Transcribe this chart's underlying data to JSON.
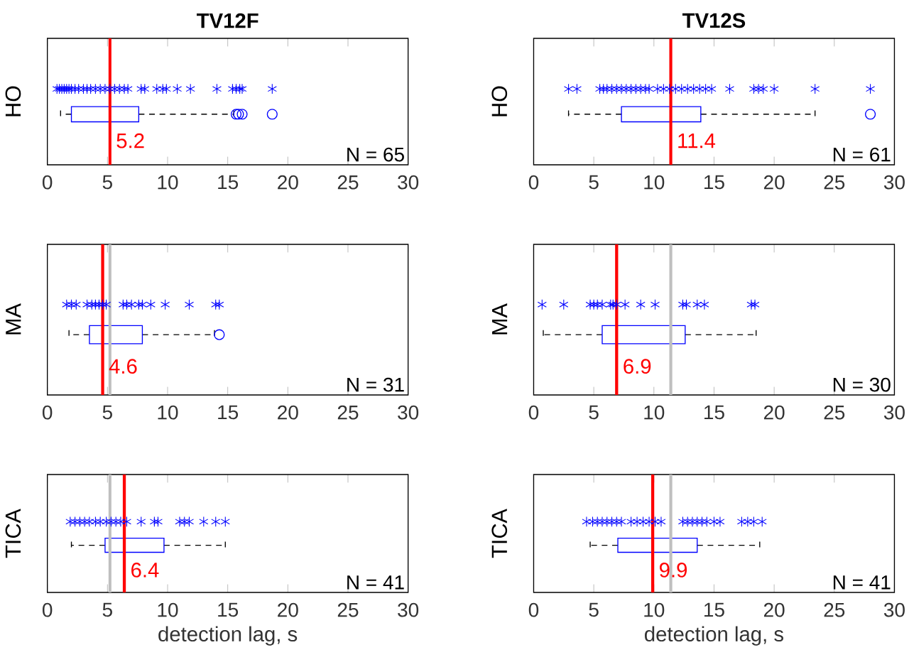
{
  "chart_data": [
    {
      "type": "box",
      "orientation": "horizontal",
      "title": "TV12F",
      "ylabel": "HO",
      "categories": [
        null,
        null
      ],
      "xlim": [
        0,
        30
      ],
      "xticks": [
        0,
        5,
        10,
        15,
        20,
        25,
        30
      ],
      "tick_labels": "x",
      "color": "#0000ff",
      "boxes": [
        null,
        {
          "low": 1.1,
          "q1": 2.0,
          "median": 5.2,
          "q3": 7.6,
          "high": 15.5,
          "outliers": [
            15.7,
            15.9,
            16.2,
            18.7
          ]
        }
      ],
      "series": [
        {
          "type": "scatter",
          "marker": "cross",
          "color": "#0000ff",
          "x": [
            null,
            null,
            null,
            null,
            null,
            null,
            null,
            null,
            null,
            null,
            null,
            null,
            null,
            null,
            null,
            null,
            null,
            null,
            null,
            null,
            null,
            null,
            null,
            null,
            null,
            null,
            null,
            null,
            null,
            null,
            null,
            null,
            null
          ],
          "values": [
            0.8,
            1.0,
            1.2,
            1.4,
            1.6,
            1.8,
            2.0,
            2.3,
            2.6,
            3.0,
            3.3,
            3.6,
            4.0,
            4.4,
            4.8,
            5.2,
            5.6,
            6.0,
            6.4,
            6.7,
            7.8,
            8.1,
            9.1,
            9.6,
            9.9,
            10.8,
            11.9,
            14.1,
            15.4,
            15.7,
            16.0,
            16.2,
            18.7
          ]
        }
      ],
      "ref_lines": [
        {
          "axis": "x",
          "value": 5.2,
          "label": "5.2",
          "color": "#ff0000"
        }
      ],
      "annotations": [
        "N = 65"
      ]
    },
    {
      "type": "box",
      "orientation": "horizontal",
      "title": "TV12S",
      "ylabel": "HO",
      "categories": [
        null,
        null
      ],
      "xlim": [
        0,
        30
      ],
      "xticks": [
        0,
        5,
        10,
        15,
        20,
        25,
        30
      ],
      "tick_labels": "x",
      "color": "#0000ff",
      "boxes": [
        null,
        {
          "low": 2.9,
          "q1": 7.3,
          "median": 11.4,
          "q3": 13.9,
          "high": 23.4,
          "outliers": [
            28.0
          ]
        }
      ],
      "series": [
        {
          "type": "scatter",
          "marker": "cross",
          "color": "#0000ff",
          "x": [
            null,
            null,
            null,
            null,
            null,
            null,
            null,
            null,
            null,
            null,
            null,
            null,
            null,
            null,
            null,
            null,
            null,
            null,
            null,
            null,
            null,
            null,
            null,
            null,
            null,
            null,
            null,
            null,
            null,
            null,
            null
          ],
          "values": [
            2.9,
            3.6,
            5.5,
            5.8,
            6.1,
            6.5,
            6.9,
            7.3,
            7.7,
            8.1,
            8.5,
            8.9,
            9.3,
            9.6,
            10.3,
            10.8,
            11.3,
            11.8,
            12.3,
            12.8,
            13.3,
            13.8,
            14.3,
            14.8,
            16.3,
            18.3,
            18.7,
            19.1,
            20.0,
            23.4,
            28.0
          ]
        }
      ],
      "ref_lines": [
        {
          "axis": "x",
          "value": 11.4,
          "label": "11.4",
          "color": "#ff0000"
        }
      ],
      "annotations": [
        "N = 61"
      ]
    },
    {
      "type": "box",
      "orientation": "horizontal",
      "ylabel": "MA",
      "categories": [
        null,
        null
      ],
      "xlim": [
        0,
        30
      ],
      "xticks": [
        0,
        5,
        10,
        15,
        20,
        25,
        30
      ],
      "tick_labels": "x",
      "color": "#0000ff",
      "boxes": [
        null,
        {
          "low": 1.8,
          "q1": 3.5,
          "median": 4.6,
          "q3": 7.9,
          "high": 13.9,
          "outliers": [
            14.3
          ]
        }
      ],
      "series": [
        {
          "type": "scatter",
          "marker": "cross",
          "color": "#0000ff",
          "x": [
            null,
            null,
            null,
            null,
            null,
            null,
            null,
            null,
            null,
            null,
            null,
            null,
            null,
            null,
            null,
            null,
            null,
            null,
            null
          ],
          "values": [
            1.6,
            2.0,
            2.4,
            3.3,
            3.7,
            4.0,
            4.3,
            4.6,
            4.9,
            6.3,
            6.6,
            7.0,
            7.6,
            7.9,
            8.6,
            9.8,
            11.8,
            14.0,
            14.3
          ]
        }
      ],
      "ref_lines": [
        {
          "axis": "x",
          "value": 5.2,
          "color": "#bfbfbf"
        },
        {
          "axis": "x",
          "value": 4.6,
          "label": "4.6",
          "color": "#ff0000"
        }
      ],
      "annotations": [
        "N = 31"
      ]
    },
    {
      "type": "box",
      "orientation": "horizontal",
      "ylabel": "MA",
      "categories": [
        null,
        null
      ],
      "xlim": [
        0,
        30
      ],
      "xticks": [
        0,
        5,
        10,
        15,
        20,
        25,
        30
      ],
      "tick_labels": "x",
      "color": "#0000ff",
      "boxes": [
        null,
        {
          "low": 0.8,
          "q1": 5.7,
          "median": 6.9,
          "q3": 12.6,
          "high": 18.5
        }
      ],
      "series": [
        {
          "type": "scatter",
          "marker": "cross",
          "color": "#0000ff",
          "x": [
            null,
            null,
            null,
            null,
            null,
            null,
            null,
            null,
            null,
            null,
            null,
            null,
            null,
            null,
            null,
            null,
            null,
            null
          ],
          "values": [
            0.7,
            2.5,
            4.7,
            5.0,
            5.3,
            5.7,
            6.4,
            6.6,
            6.9,
            7.6,
            8.9,
            10.1,
            12.4,
            12.7,
            13.6,
            14.2,
            18.1,
            18.4
          ]
        }
      ],
      "ref_lines": [
        {
          "axis": "x",
          "value": 11.4,
          "color": "#bfbfbf"
        },
        {
          "axis": "x",
          "value": 6.9,
          "label": "6.9",
          "color": "#ff0000"
        }
      ],
      "annotations": [
        "N = 30"
      ]
    },
    {
      "type": "box",
      "orientation": "horizontal",
      "ylabel": "TICA",
      "xlabel": "detection lag, s",
      "categories": [
        null,
        null
      ],
      "xlim": [
        0,
        30
      ],
      "xticks": [
        0,
        5,
        10,
        15,
        20,
        25,
        30
      ],
      "tick_labels": "x",
      "color": "#0000ff",
      "boxes": [
        null,
        {
          "low": 2.0,
          "q1": 4.8,
          "median": 6.4,
          "q3": 9.7,
          "high": 14.8
        }
      ],
      "series": [
        {
          "type": "scatter",
          "marker": "cross",
          "color": "#0000ff",
          "x": [
            null,
            null,
            null,
            null,
            null,
            null,
            null,
            null,
            null,
            null,
            null,
            null,
            null,
            null,
            null,
            null,
            null,
            null,
            null,
            null,
            null
          ],
          "values": [
            1.9,
            2.3,
            2.7,
            3.1,
            3.5,
            4.0,
            4.4,
            4.9,
            5.3,
            5.7,
            6.1,
            6.6,
            7.8,
            8.9,
            9.2,
            11.0,
            11.4,
            11.8,
            13.0,
            14.0,
            14.8
          ]
        }
      ],
      "ref_lines": [
        {
          "axis": "x",
          "value": 5.2,
          "color": "#bfbfbf"
        },
        {
          "axis": "x",
          "value": 6.4,
          "label": "6.4",
          "color": "#ff0000"
        }
      ],
      "annotations": [
        "N = 41"
      ]
    },
    {
      "type": "box",
      "orientation": "horizontal",
      "ylabel": "TICA",
      "xlabel": "detection lag, s",
      "categories": [
        null,
        null
      ],
      "xlim": [
        0,
        30
      ],
      "xticks": [
        0,
        5,
        10,
        15,
        20,
        25,
        30
      ],
      "tick_labels": "x",
      "color": "#0000ff",
      "boxes": [
        null,
        {
          "low": 4.7,
          "q1": 7.0,
          "median": 9.9,
          "q3": 13.6,
          "high": 18.8
        }
      ],
      "series": [
        {
          "type": "scatter",
          "marker": "cross",
          "color": "#0000ff",
          "x": [
            null,
            null,
            null,
            null,
            null,
            null,
            null,
            null,
            null,
            null,
            null,
            null,
            null,
            null,
            null,
            null,
            null,
            null,
            null,
            null,
            null,
            null,
            null,
            null,
            null,
            null
          ],
          "values": [
            4.4,
            4.9,
            5.3,
            5.7,
            6.1,
            6.5,
            6.9,
            7.3,
            8.1,
            8.6,
            9.1,
            9.6,
            10.1,
            10.6,
            12.4,
            12.8,
            13.2,
            13.6,
            14.0,
            14.4,
            15.0,
            15.5,
            17.3,
            17.8,
            18.3,
            19.0
          ]
        }
      ],
      "ref_lines": [
        {
          "axis": "x",
          "value": 11.4,
          "color": "#bfbfbf"
        },
        {
          "axis": "x",
          "value": 9.9,
          "label": "9.9",
          "color": "#ff0000"
        }
      ],
      "annotations": [
        "N = 41"
      ]
    }
  ]
}
